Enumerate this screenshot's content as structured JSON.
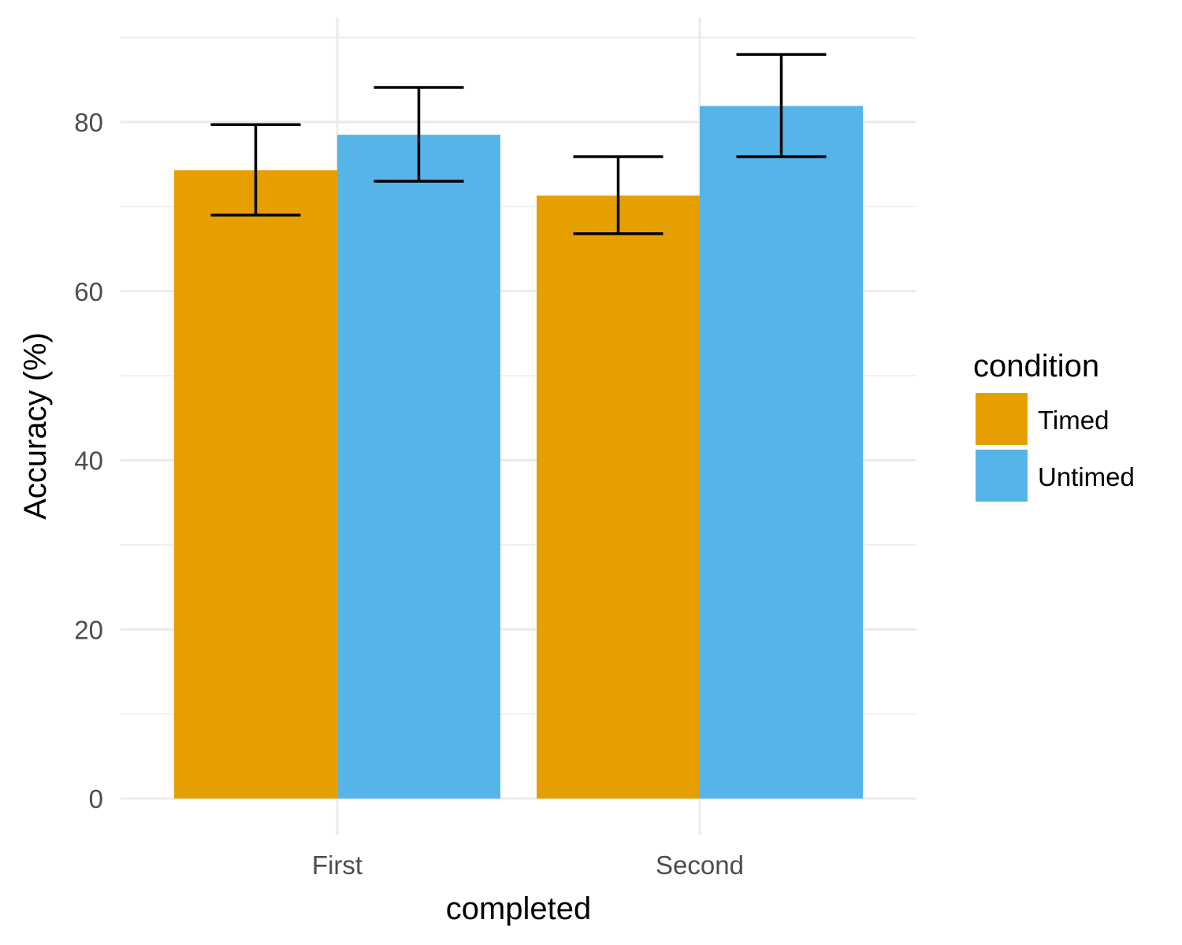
{
  "chart_data": {
    "type": "bar",
    "title": "",
    "xlabel": "completed",
    "ylabel": "Accuracy (%)",
    "categories": [
      "First",
      "Second"
    ],
    "series": [
      {
        "name": "Timed",
        "color": "#E69F00",
        "values": [
          74.3,
          71.3
        ],
        "error_low": [
          69.0,
          66.8
        ],
        "error_high": [
          79.7,
          75.9
        ]
      },
      {
        "name": "Untimed",
        "color": "#56B4E9",
        "values": [
          78.5,
          81.9
        ],
        "error_low": [
          73.0,
          75.9
        ],
        "error_high": [
          84.1,
          88.0
        ]
      }
    ],
    "ylim": [
      0,
      92
    ],
    "yticks": [
      0,
      20,
      40,
      60,
      80
    ],
    "grid": true,
    "legend": {
      "title": "condition",
      "position": "right"
    }
  }
}
